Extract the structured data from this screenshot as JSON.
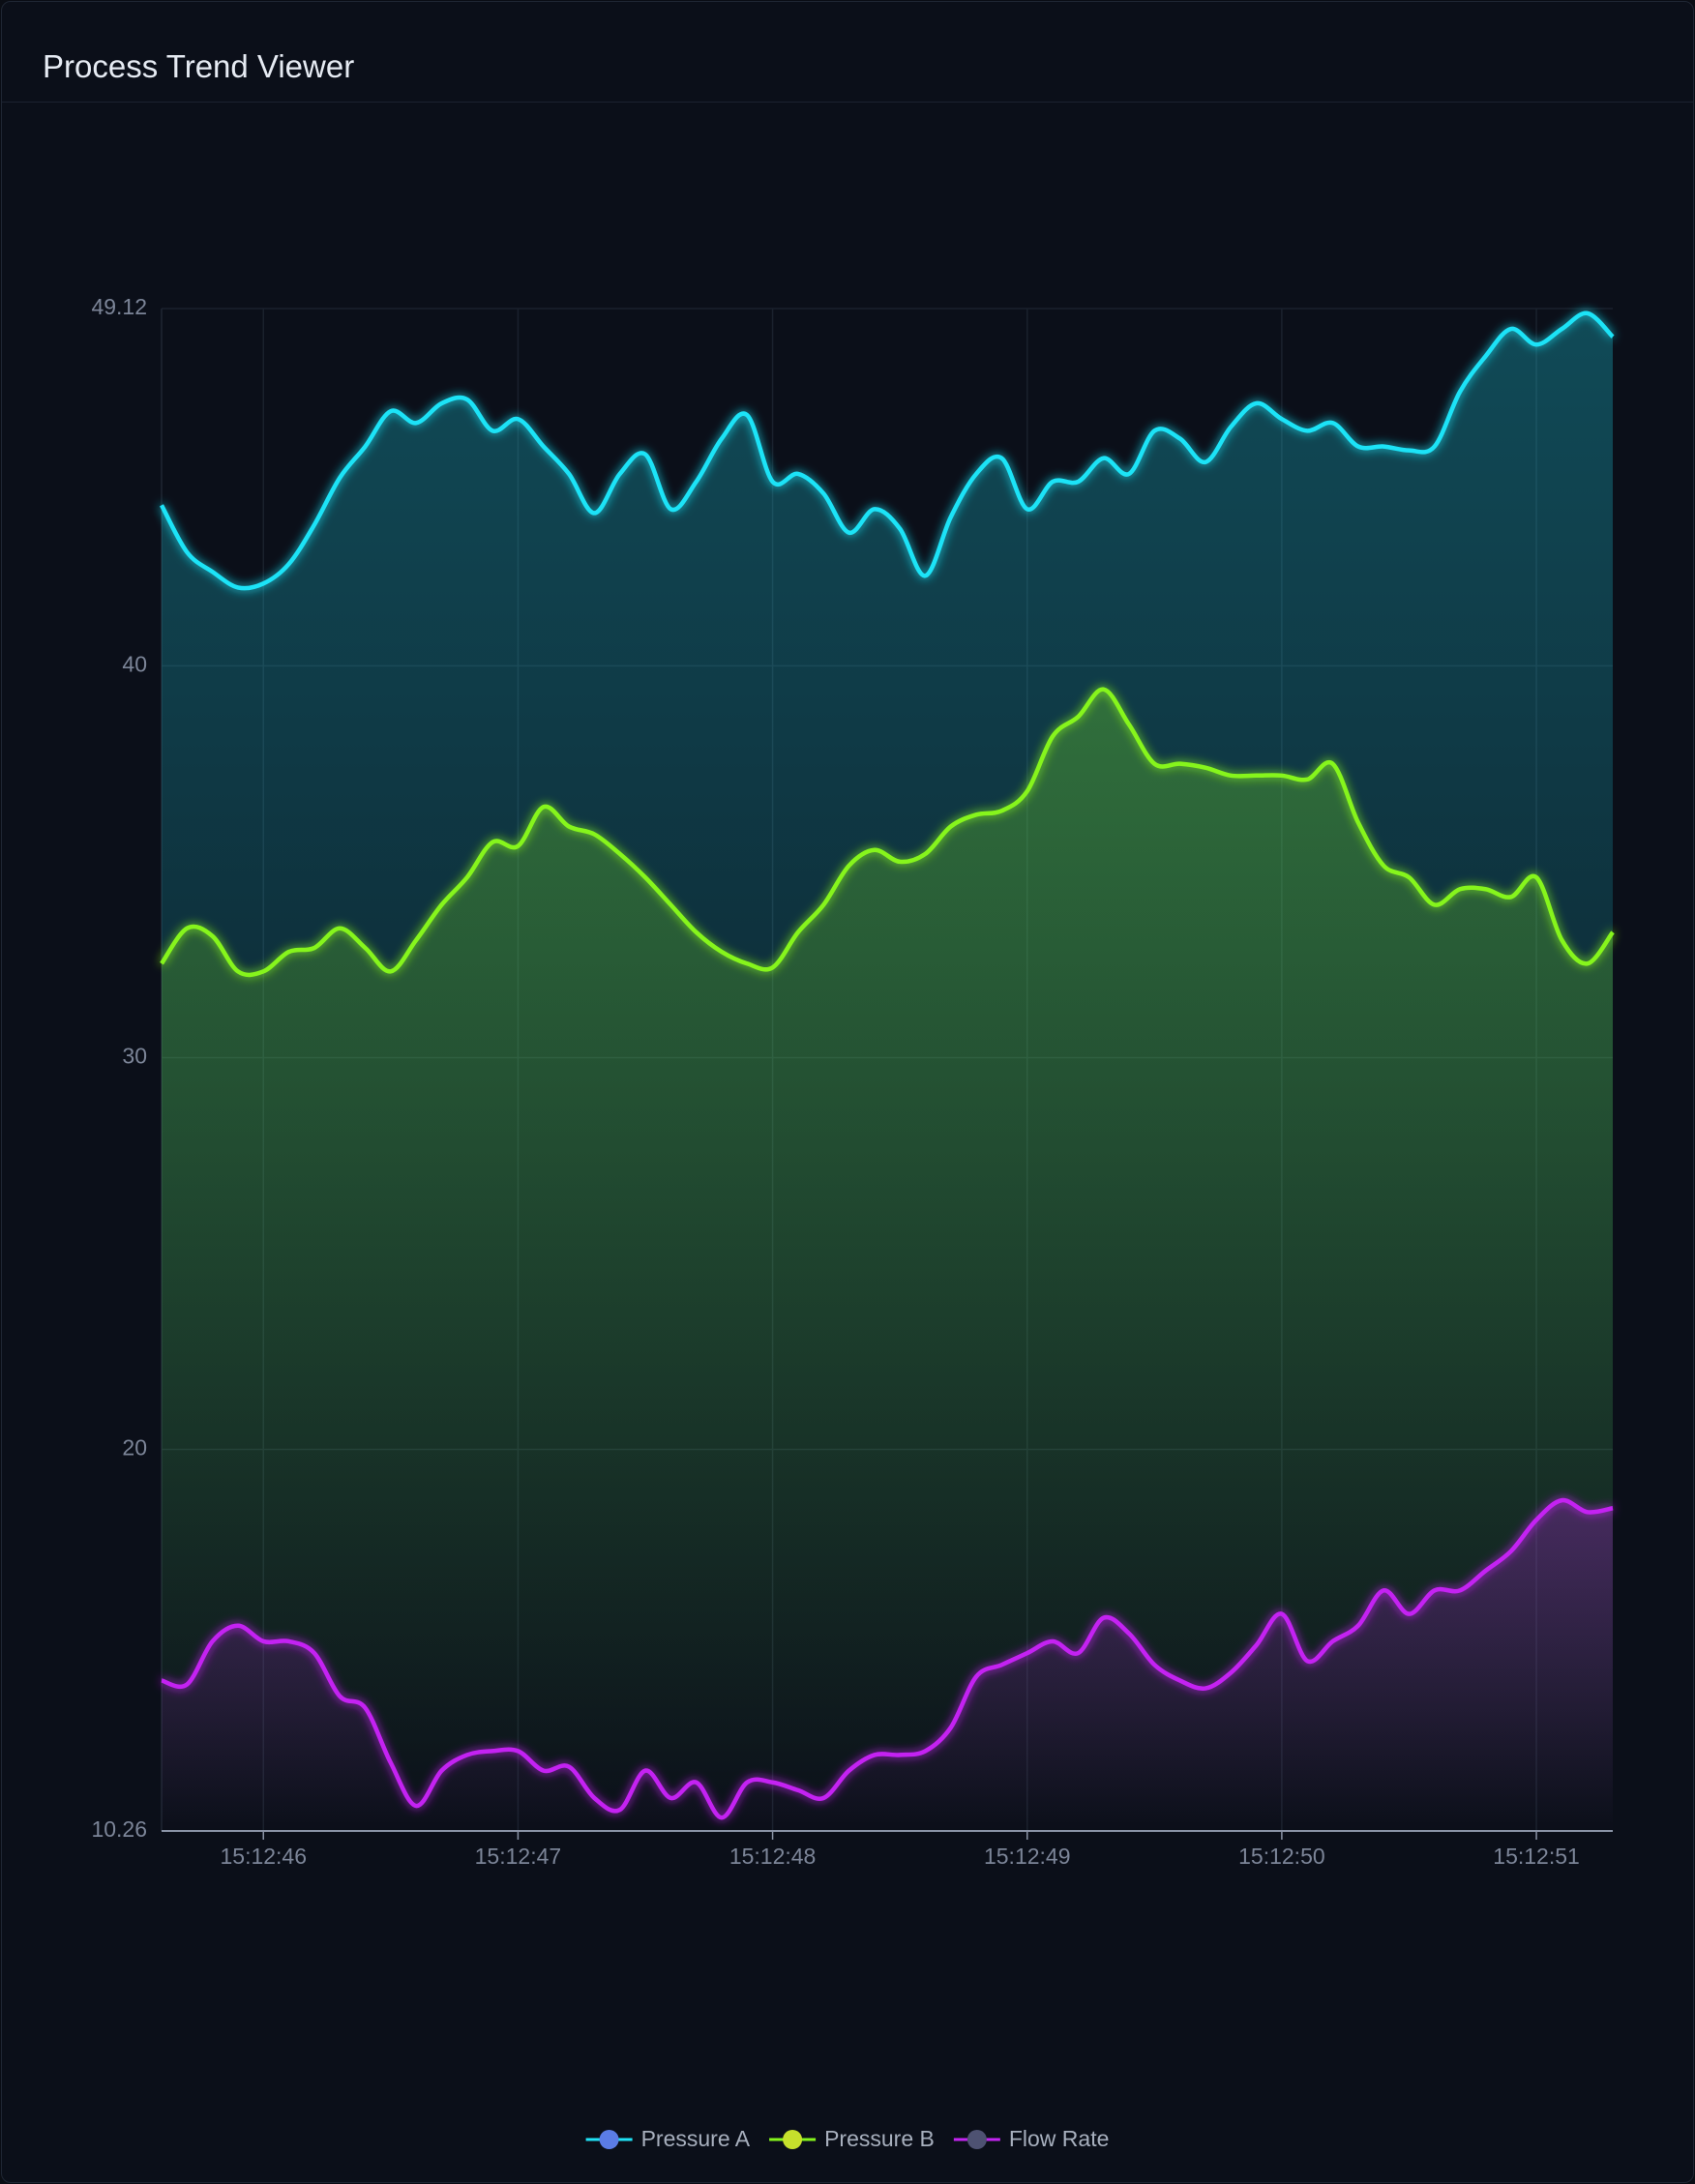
{
  "header": {
    "title": "Process Trend Viewer"
  },
  "chart_data": {
    "type": "area",
    "categories": [
      null,
      null,
      null,
      null,
      "15:12:46",
      null,
      null,
      null,
      null,
      null,
      null,
      null,
      null,
      null,
      "15:12:47",
      null,
      null,
      null,
      null,
      null,
      null,
      null,
      null,
      null,
      "15:12:48",
      null,
      null,
      null,
      null,
      null,
      null,
      null,
      null,
      null,
      "15:12:49",
      null,
      null,
      null,
      null,
      null,
      null,
      null,
      null,
      null,
      "15:12:50",
      null,
      null,
      null,
      null,
      null,
      null,
      null,
      null,
      null,
      "15:12:51",
      null,
      null,
      null
    ],
    "series": [
      {
        "name": "Pressure A",
        "color": "#1fe3f7",
        "marker_color": "#5b7ce6",
        "values": [
          44.1,
          42.9,
          42.4,
          42.0,
          42.1,
          42.6,
          43.6,
          44.8,
          45.6,
          46.5,
          46.2,
          46.7,
          46.8,
          46.0,
          46.3,
          45.6,
          44.9,
          43.9,
          44.9,
          45.4,
          44.0,
          44.7,
          45.8,
          46.4,
          44.7,
          44.9,
          44.4,
          43.4,
          44.0,
          43.5,
          42.3,
          43.8,
          44.9,
          45.3,
          44.0,
          44.7,
          44.7,
          45.3,
          44.9,
          46.0,
          45.8,
          45.2,
          46.1,
          46.7,
          46.3,
          46.0,
          46.2,
          45.6,
          45.6,
          45.5,
          45.6,
          47.0,
          47.9,
          48.6,
          48.2,
          48.6,
          49.0,
          48.4
        ]
      },
      {
        "name": "Pressure B",
        "color": "#86f51c",
        "marker_color": "#c6e02c",
        "values": [
          32.4,
          33.3,
          33.1,
          32.2,
          32.2,
          32.7,
          32.8,
          33.3,
          32.8,
          32.2,
          33.0,
          33.9,
          34.6,
          35.5,
          35.4,
          36.4,
          35.9,
          35.7,
          35.2,
          34.6,
          33.9,
          33.2,
          32.7,
          32.4,
          32.3,
          33.2,
          33.9,
          34.9,
          35.3,
          35.0,
          35.2,
          35.9,
          36.2,
          36.3,
          36.8,
          38.2,
          38.7,
          39.4,
          38.5,
          37.5,
          37.5,
          37.4,
          37.2,
          37.2,
          37.2,
          37.1,
          37.5,
          36.0,
          34.9,
          34.6,
          33.9,
          34.3,
          34.3,
          34.1,
          34.6,
          33.0,
          32.4,
          33.2
        ]
      },
      {
        "name": "Flow Rate",
        "color": "#c424f2",
        "marker_color": "#4e5272",
        "values": [
          14.1,
          14.0,
          15.1,
          15.5,
          15.1,
          15.1,
          14.8,
          13.7,
          13.4,
          12.0,
          10.9,
          11.8,
          12.2,
          12.3,
          12.3,
          11.8,
          11.9,
          11.1,
          10.8,
          11.8,
          11.1,
          11.5,
          10.6,
          11.5,
          11.5,
          11.3,
          11.1,
          11.8,
          12.2,
          12.2,
          12.3,
          12.9,
          14.2,
          14.5,
          14.8,
          15.1,
          14.8,
          15.7,
          15.3,
          14.5,
          14.1,
          13.9,
          14.3,
          15.0,
          15.8,
          14.6,
          15.1,
          15.5,
          16.4,
          15.8,
          16.4,
          16.4,
          16.9,
          17.4,
          18.2,
          18.7,
          18.4,
          18.5
        ]
      }
    ],
    "ylim": [
      10.26,
      49.12
    ],
    "yticks": [
      10.26,
      20,
      30,
      40,
      49.12
    ],
    "grid": true,
    "legend": "bottom"
  }
}
